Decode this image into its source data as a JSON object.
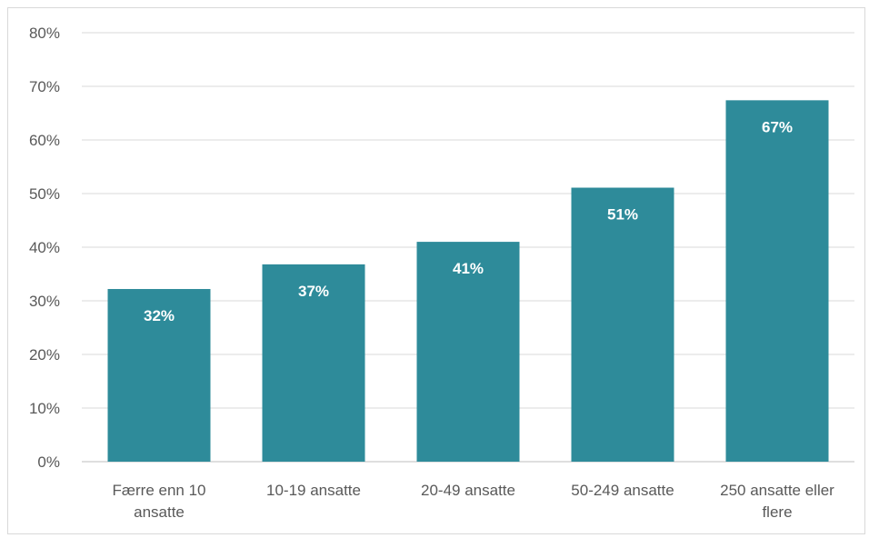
{
  "chart_data": {
    "type": "bar",
    "categories": [
      [
        "Færre enn 10",
        "ansatte"
      ],
      [
        "10-19 ansatte"
      ],
      [
        "20-49 ansatte"
      ],
      [
        "50-249 ansatte"
      ],
      [
        "250 ansatte eller",
        "flere"
      ]
    ],
    "values": [
      32.2,
      36.8,
      41.0,
      51.1,
      67.4
    ],
    "data_labels": [
      "32%",
      "37%",
      "41%",
      "51%",
      "67%"
    ],
    "y_ticks": [
      "0%",
      "10%",
      "20%",
      "30%",
      "40%",
      "50%",
      "60%",
      "70%",
      "80%"
    ],
    "ylim": [
      0,
      80
    ],
    "grid": true,
    "bar_color": "#2e8b9a",
    "title": "",
    "xlabel": "",
    "ylabel": ""
  }
}
